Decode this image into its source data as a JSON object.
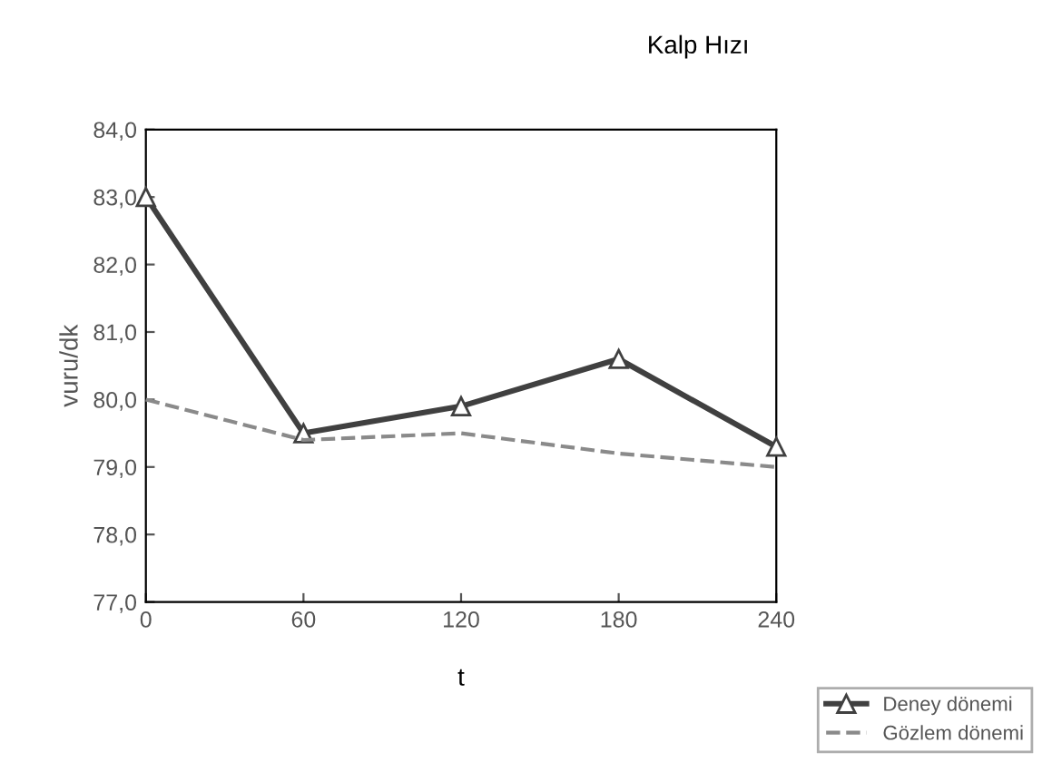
{
  "chart_data": {
    "type": "line",
    "title": "Kalp Hızı",
    "xlabel": "t",
    "ylabel": "vuru/dk",
    "x": [
      0,
      60,
      120,
      180,
      240
    ],
    "series": [
      {
        "name": "Deney dönemi",
        "color": "#404040",
        "values": [
          83.0,
          79.5,
          79.9,
          80.6,
          79.3
        ],
        "marker": "triangle",
        "line_style": "solid"
      },
      {
        "name": "Gözlem dönemi",
        "color": "#8a8a8a",
        "values": [
          80.0,
          79.4,
          79.5,
          79.2,
          79.0
        ],
        "marker": "none",
        "line_style": "dashed"
      }
    ],
    "xlim": [
      0,
      240
    ],
    "xticks": [
      0,
      60,
      120,
      180,
      240
    ],
    "ylim": [
      77.0,
      84.0
    ],
    "yticks": [
      {
        "value": 77.0,
        "label": "77,0"
      },
      {
        "value": 78.0,
        "label": "78,0"
      },
      {
        "value": 79.0,
        "label": "79,0"
      },
      {
        "value": 80.0,
        "label": "80,0"
      },
      {
        "value": 81.0,
        "label": "81,0"
      },
      {
        "value": 82.0,
        "label": "82,0"
      },
      {
        "value": 83.0,
        "label": "83,0"
      },
      {
        "value": 84.0,
        "label": "84,0"
      }
    ],
    "grid": false,
    "legend": "bottom right"
  }
}
